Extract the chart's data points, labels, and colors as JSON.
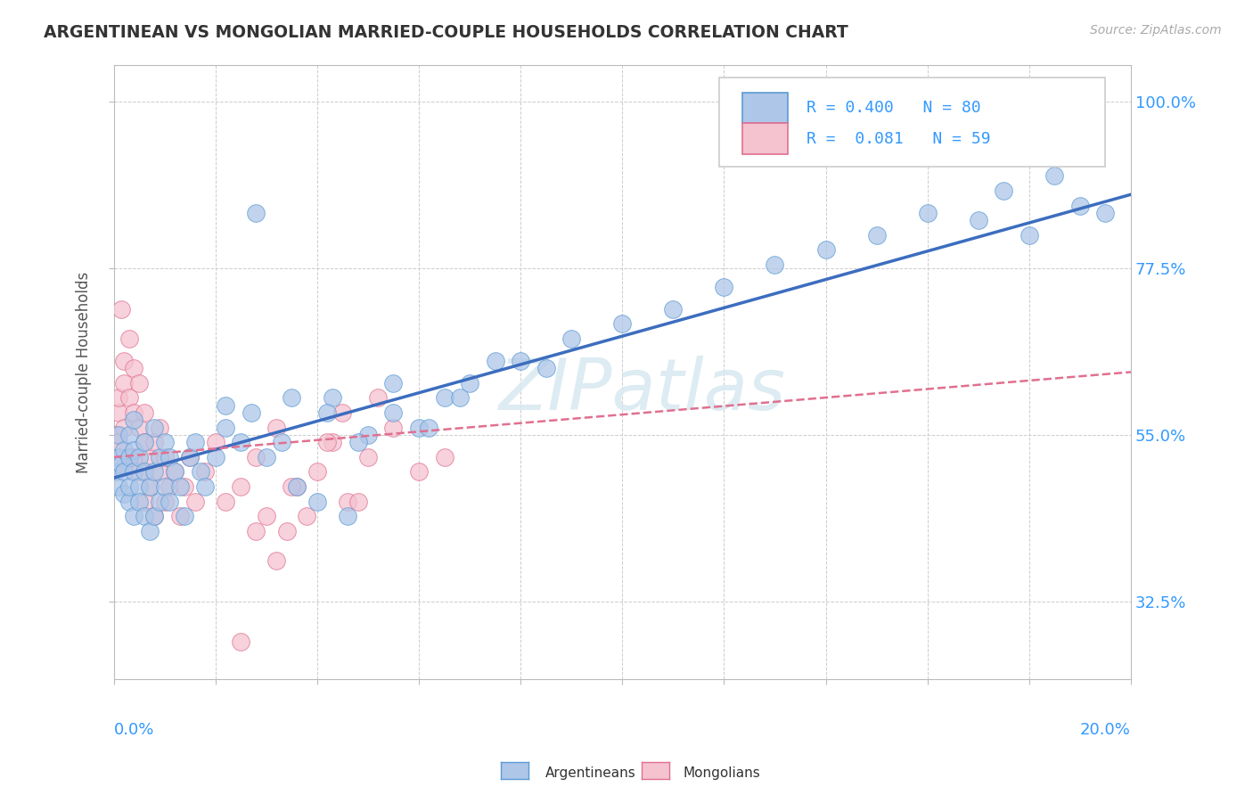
{
  "title": "ARGENTINEAN VS MONGOLIAN MARRIED-COUPLE HOUSEHOLDS CORRELATION CHART",
  "source": "Source: ZipAtlas.com",
  "ylabel": "Married-couple Households",
  "yticks": [
    "32.5%",
    "55.0%",
    "77.5%",
    "100.0%"
  ],
  "ytick_vals": [
    0.325,
    0.55,
    0.775,
    1.0
  ],
  "xmin": 0.0,
  "xmax": 0.2,
  "ymin": 0.22,
  "ymax": 1.05,
  "color_argentinean_fill": "#aec6e8",
  "color_argentinean_edge": "#5b9bd5",
  "color_mongolian_fill": "#f5c2d0",
  "color_mongolian_edge": "#e07090",
  "color_line_argentinean": "#3c6dbf",
  "color_line_mongolian": "#e07090",
  "color_text_blue": "#3399ff",
  "background_color": "#ffffff",
  "watermark": "ZIPatlas",
  "argentinean_x": [
    0.0005,
    0.001,
    0.001,
    0.001,
    0.0015,
    0.002,
    0.002,
    0.002,
    0.003,
    0.003,
    0.003,
    0.003,
    0.004,
    0.004,
    0.004,
    0.004,
    0.005,
    0.005,
    0.005,
    0.006,
    0.006,
    0.006,
    0.007,
    0.007,
    0.008,
    0.008,
    0.008,
    0.009,
    0.009,
    0.01,
    0.01,
    0.011,
    0.011,
    0.012,
    0.013,
    0.014,
    0.015,
    0.016,
    0.017,
    0.018,
    0.02,
    0.022,
    0.025,
    0.027,
    0.03,
    0.033,
    0.036,
    0.04,
    0.043,
    0.046,
    0.05,
    0.055,
    0.06,
    0.065,
    0.07,
    0.08,
    0.09,
    0.1,
    0.11,
    0.12,
    0.13,
    0.14,
    0.15,
    0.16,
    0.17,
    0.175,
    0.18,
    0.185,
    0.19,
    0.195,
    0.022,
    0.028,
    0.035,
    0.042,
    0.048,
    0.055,
    0.062,
    0.068,
    0.075,
    0.085
  ],
  "argentinean_y": [
    0.5,
    0.52,
    0.48,
    0.55,
    0.51,
    0.47,
    0.53,
    0.5,
    0.46,
    0.52,
    0.48,
    0.55,
    0.44,
    0.5,
    0.53,
    0.57,
    0.48,
    0.52,
    0.46,
    0.44,
    0.5,
    0.54,
    0.42,
    0.48,
    0.44,
    0.5,
    0.56,
    0.46,
    0.52,
    0.48,
    0.54,
    0.46,
    0.52,
    0.5,
    0.48,
    0.44,
    0.52,
    0.54,
    0.5,
    0.48,
    0.52,
    0.56,
    0.54,
    0.58,
    0.52,
    0.54,
    0.48,
    0.46,
    0.6,
    0.44,
    0.55,
    0.58,
    0.56,
    0.6,
    0.62,
    0.65,
    0.68,
    0.7,
    0.72,
    0.75,
    0.78,
    0.8,
    0.82,
    0.85,
    0.84,
    0.88,
    0.82,
    0.9,
    0.86,
    0.85,
    0.59,
    0.85,
    0.6,
    0.58,
    0.54,
    0.62,
    0.56,
    0.6,
    0.65,
    0.64
  ],
  "mongolian_x": [
    0.0005,
    0.001,
    0.001,
    0.001,
    0.0015,
    0.002,
    0.002,
    0.002,
    0.003,
    0.003,
    0.003,
    0.004,
    0.004,
    0.004,
    0.005,
    0.005,
    0.005,
    0.006,
    0.006,
    0.006,
    0.007,
    0.007,
    0.008,
    0.008,
    0.009,
    0.009,
    0.01,
    0.01,
    0.011,
    0.012,
    0.013,
    0.014,
    0.015,
    0.016,
    0.018,
    0.02,
    0.022,
    0.025,
    0.028,
    0.03,
    0.032,
    0.034,
    0.036,
    0.04,
    0.043,
    0.046,
    0.05,
    0.055,
    0.06,
    0.065,
    0.025,
    0.028,
    0.032,
    0.035,
    0.038,
    0.042,
    0.045,
    0.048,
    0.052
  ],
  "mongolian_y": [
    0.55,
    0.58,
    0.54,
    0.6,
    0.72,
    0.62,
    0.56,
    0.65,
    0.6,
    0.52,
    0.68,
    0.58,
    0.52,
    0.64,
    0.56,
    0.5,
    0.62,
    0.54,
    0.46,
    0.58,
    0.52,
    0.48,
    0.54,
    0.44,
    0.5,
    0.56,
    0.46,
    0.52,
    0.48,
    0.5,
    0.44,
    0.48,
    0.52,
    0.46,
    0.5,
    0.54,
    0.46,
    0.48,
    0.52,
    0.44,
    0.56,
    0.42,
    0.48,
    0.5,
    0.54,
    0.46,
    0.52,
    0.56,
    0.5,
    0.52,
    0.27,
    0.42,
    0.38,
    0.48,
    0.44,
    0.54,
    0.58,
    0.46,
    0.6
  ],
  "trend_arg_x0": 0.0,
  "trend_arg_x1": 0.2,
  "trend_arg_y0": 0.492,
  "trend_arg_y1": 0.875,
  "trend_mon_x0": 0.0,
  "trend_mon_x1": 0.2,
  "trend_mon_y0": 0.52,
  "trend_mon_y1": 0.635
}
